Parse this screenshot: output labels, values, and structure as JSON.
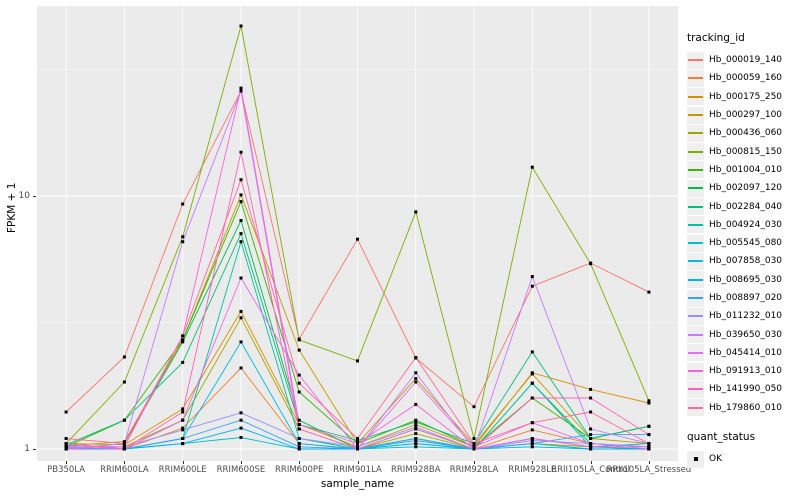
{
  "axes": {
    "y_title": "FPKM + 1",
    "x_title": "sample_name"
  },
  "legend": {
    "tracking_title": "tracking_id",
    "quant_title": "quant_status",
    "quant_label": "OK"
  },
  "colors": {
    "panel_bg": "#EBEBEB",
    "gridline": "#FFFFFF",
    "legend_key_bg": "#EFEFEF",
    "tick_text": "#4D4D4D",
    "axis_title": "#000000",
    "marker": "#000000"
  },
  "chart_data": {
    "type": "line",
    "title": "",
    "xlabel": "sample_name",
    "ylabel": "FPKM + 1",
    "y_scale": "log10",
    "y_ticks": [
      1,
      10
    ],
    "y_minor_gridlines": [
      3.1623,
      31.623
    ],
    "ylim": [
      0.93,
      56
    ],
    "grid": true,
    "legend_position": "right",
    "point_marker": "black-square (quant_status OK)",
    "x_categories": [
      "PB350LA",
      "RRIM600LA",
      "RRIM600LE",
      "RRIM600SE",
      "RRIM600PE",
      "RRIM901LA",
      "RRIM928BA",
      "RRIM928LA",
      "RRIM928LE",
      "RRII105LA_Control",
      "RRII105LA_Stressed"
    ],
    "series": [
      {
        "name": "Hb_000019_140",
        "color": "#F8766D",
        "values": [
          1.4,
          2.31,
          9.3,
          26.0,
          2.72,
          6.75,
          2.29,
          1.47,
          4.4,
          5.43,
          4.17
        ]
      },
      {
        "name": "Hb_000059_160",
        "color": "#EA8331",
        "values": [
          1.02,
          1.0,
          1.21,
          2.09,
          1.05,
          1.0,
          1.1,
          1.0,
          1.19,
          1.05,
          1.02
        ]
      },
      {
        "name": "Hb_000175_250",
        "color": "#D89000",
        "values": [
          1.05,
          1.04,
          1.44,
          3.5,
          1.25,
          1.02,
          1.25,
          1.02,
          2.0,
          1.72,
          1.52
        ]
      },
      {
        "name": "Hb_000297_100",
        "color": "#C09B00",
        "values": [
          1.03,
          1.07,
          2.7,
          10.1,
          2.46,
          1.05,
          1.9,
          1.04,
          1.98,
          1.1,
          1.05
        ]
      },
      {
        "name": "Hb_000436_060",
        "color": "#A3A500",
        "values": [
          1.0,
          1.02,
          1.3,
          3.3,
          1.2,
          1.0,
          1.15,
          1.0,
          1.05,
          1.02,
          1.0
        ]
      },
      {
        "name": "Hb_000815_150",
        "color": "#7CAE00",
        "values": [
          1.05,
          1.84,
          6.9,
          47.0,
          2.7,
          2.23,
          8.65,
          1.1,
          13.0,
          5.4,
          1.55
        ]
      },
      {
        "name": "Hb_001004_010",
        "color": "#39B600",
        "values": [
          1.02,
          1.3,
          2.7,
          9.5,
          1.68,
          1.05,
          1.3,
          1.02,
          1.59,
          1.1,
          1.23
        ]
      },
      {
        "name": "Hb_002097_120",
        "color": "#00BB4E",
        "values": [
          1.0,
          1.05,
          2.65,
          8.0,
          1.3,
          1.0,
          1.2,
          1.0,
          1.82,
          1.05,
          1.02
        ]
      },
      {
        "name": "Hb_002284_040",
        "color": "#00BF7D",
        "values": [
          1.04,
          1.3,
          2.2,
          7.1,
          1.25,
          1.08,
          1.28,
          1.05,
          2.42,
          1.1,
          1.23
        ]
      },
      {
        "name": "Hb_004924_030",
        "color": "#00C1A3",
        "values": [
          1.0,
          1.0,
          1.1,
          6.6,
          1.1,
          1.0,
          1.05,
          1.0,
          1.82,
          1.02,
          1.0
        ]
      },
      {
        "name": "Hb_005545_080",
        "color": "#00BFC4",
        "values": [
          1.0,
          1.0,
          1.05,
          1.11,
          1.0,
          1.0,
          1.02,
          1.0,
          1.05,
          1.0,
          1.0
        ]
      },
      {
        "name": "Hb_007858_030",
        "color": "#00BAE0",
        "values": [
          1.02,
          1.0,
          1.1,
          2.65,
          1.05,
          1.0,
          1.1,
          1.0,
          1.1,
          1.02,
          1.05
        ]
      },
      {
        "name": "Hb_008695_030",
        "color": "#00B0F6",
        "values": [
          1.0,
          1.0,
          1.05,
          1.21,
          1.0,
          1.0,
          1.05,
          1.0,
          1.02,
          1.0,
          1.0
        ]
      },
      {
        "name": "Hb_008897_020",
        "color": "#35A2FF",
        "values": [
          1.01,
          1.0,
          1.1,
          1.3,
          1.02,
          1.0,
          1.08,
          1.0,
          1.05,
          1.14,
          1.14
        ]
      },
      {
        "name": "Hb_011232_010",
        "color": "#9590FF",
        "values": [
          1.03,
          1.02,
          1.19,
          1.39,
          1.1,
          1.02,
          1.22,
          1.0,
          1.08,
          1.05,
          1.02
        ]
      },
      {
        "name": "Hb_039650_030",
        "color": "#C77CFF",
        "values": [
          1.0,
          1.05,
          6.6,
          26.0,
          1.2,
          1.0,
          2.0,
          1.0,
          4.8,
          1.2,
          1.05
        ]
      },
      {
        "name": "Hb_045414_010",
        "color": "#E76BF3",
        "values": [
          1.02,
          1.0,
          1.3,
          4.74,
          1.96,
          1.0,
          1.84,
          1.02,
          1.27,
          1.05,
          1.0
        ]
      },
      {
        "name": "Hb_091913_010",
        "color": "#FA62DB",
        "values": [
          1.0,
          1.02,
          2.8,
          26.7,
          1.25,
          1.05,
          1.5,
          1.0,
          1.1,
          1.02,
          1.02
        ]
      },
      {
        "name": "Hb_141990_050",
        "color": "#FF62BC",
        "values": [
          1.05,
          1.0,
          1.4,
          14.9,
          1.2,
          1.0,
          1.2,
          1.0,
          1.59,
          1.59,
          1.14
        ]
      },
      {
        "name": "Hb_179860_010",
        "color": "#FF6A98",
        "values": [
          1.1,
          1.05,
          2.8,
          11.6,
          1.82,
          1.1,
          2.3,
          1.05,
          1.27,
          1.4,
          1.05
        ]
      }
    ]
  }
}
